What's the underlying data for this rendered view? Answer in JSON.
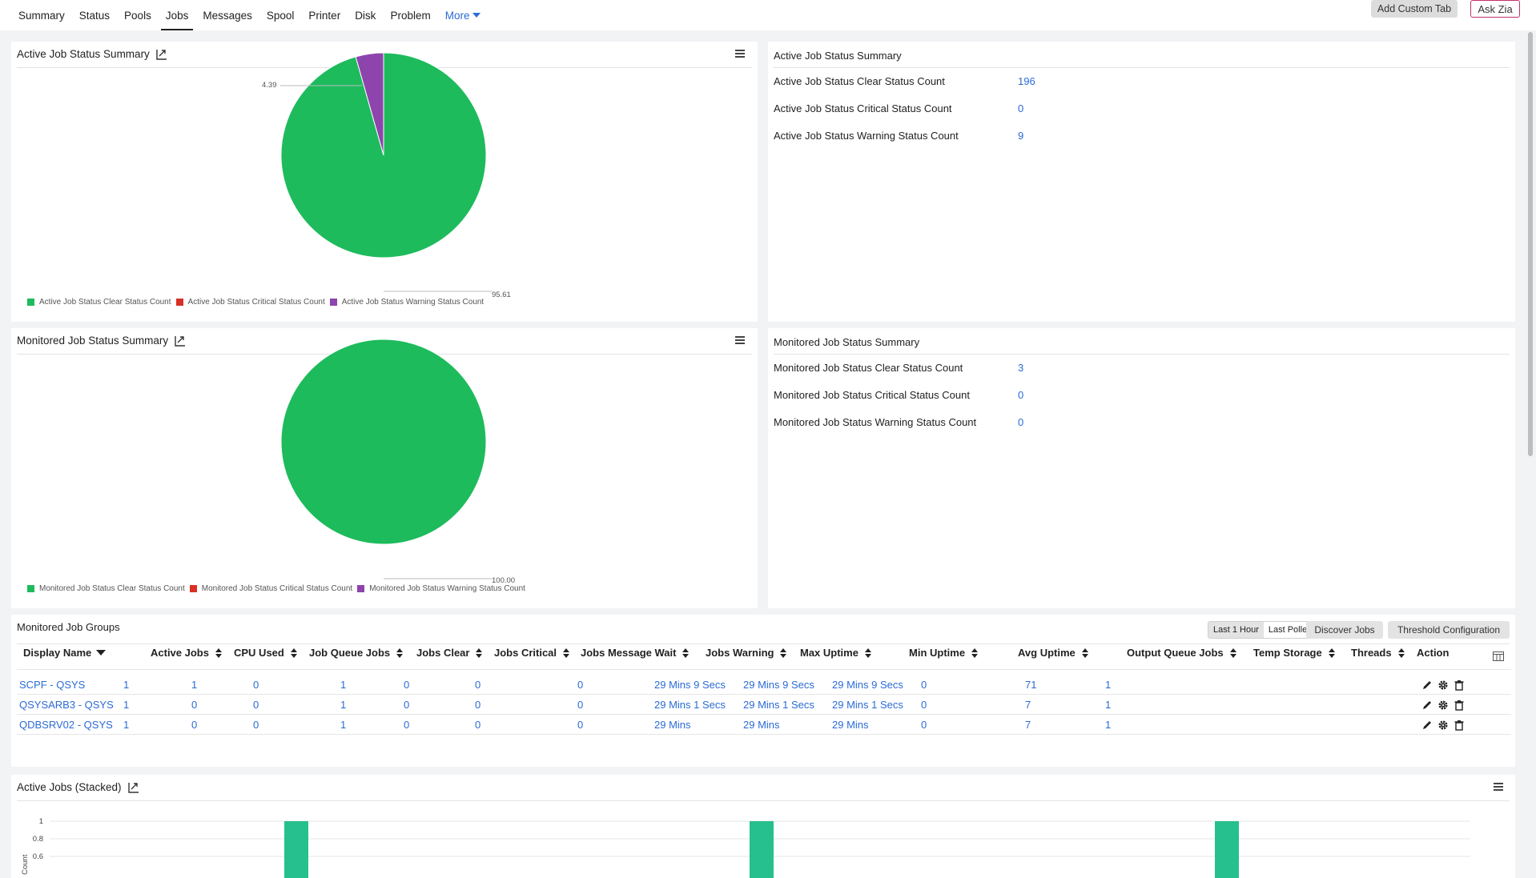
{
  "nav": {
    "tabs": [
      "Summary",
      "Status",
      "Pools",
      "Jobs",
      "Messages",
      "Spool",
      "Printer",
      "Disk",
      "Problem"
    ],
    "active_tab": "Jobs",
    "more_label": "More",
    "add_custom_tab": "Add Custom Tab",
    "ask_zia": "Ask Zia"
  },
  "active_summary": {
    "title": "Active Job Status Summary",
    "chart_data": {
      "type": "pie",
      "slices": [
        {
          "name": "Active Job Status Clear Status Count",
          "value": 95.61,
          "color": "#1dbb5c"
        },
        {
          "name": "Active Job Status Critical Status Count",
          "value": 0,
          "color": "#d93025"
        },
        {
          "name": "Active Job Status Warning Status Count",
          "value": 4.39,
          "color": "#8e44ad"
        }
      ],
      "labels": [
        "4.39",
        "95.61"
      ]
    },
    "kv_title": "Active Job Status Summary",
    "rows": [
      {
        "label": "Active Job Status Clear Status Count",
        "value": "196"
      },
      {
        "label": "Active Job Status Critical Status Count",
        "value": "0"
      },
      {
        "label": "Active Job Status Warning Status Count",
        "value": "9"
      }
    ]
  },
  "monitored_summary": {
    "title": "Monitored Job Status Summary",
    "chart_data": {
      "type": "pie",
      "slices": [
        {
          "name": "Monitored Job Status Clear Status Count",
          "value": 100.0,
          "color": "#1dbb5c"
        },
        {
          "name": "Monitored Job Status Critical Status Count",
          "value": 0,
          "color": "#d93025"
        },
        {
          "name": "Monitored Job Status Warning Status Count",
          "value": 0,
          "color": "#8e44ad"
        }
      ],
      "labels": [
        "100.00"
      ]
    },
    "kv_title": "Monitored Job Status Summary",
    "rows": [
      {
        "label": "Monitored Job Status Clear Status Count",
        "value": "3"
      },
      {
        "label": "Monitored Job Status Critical Status Count",
        "value": "0"
      },
      {
        "label": "Monitored Job Status Warning Status Count",
        "value": "0"
      }
    ]
  },
  "job_groups": {
    "title": "Monitored Job Groups",
    "range_options": [
      "Last 1 Hour",
      "Last Polled"
    ],
    "range_selected": "Last 1 Hour",
    "discover_label": "Discover Jobs",
    "threshold_label": "Threshold Configuration",
    "columns": [
      "Display Name",
      "Active Jobs",
      "CPU Used",
      "Job Queue Jobs",
      "Jobs Clear",
      "Jobs Critical",
      "Jobs Message Wait",
      "Jobs Warning",
      "Max Uptime",
      "Min Uptime",
      "Avg Uptime",
      "Output Queue Jobs",
      "Temp Storage",
      "Threads",
      "Action"
    ],
    "rows": [
      [
        "SCPF - QSYS",
        "1",
        "1",
        "0",
        "1",
        "0",
        "0",
        "0",
        "29 Mins 9 Secs",
        "29 Mins 9 Secs",
        "29 Mins 9 Secs",
        "0",
        "71",
        "1"
      ],
      [
        "QSYSARB3 - QSYS",
        "1",
        "0",
        "0",
        "1",
        "0",
        "0",
        "0",
        "29 Mins 1 Secs",
        "29 Mins 1 Secs",
        "29 Mins 1 Secs",
        "0",
        "7",
        "1"
      ],
      [
        "QDBSRV02 - QSYS",
        "1",
        "0",
        "0",
        "1",
        "0",
        "0",
        "0",
        "29 Mins",
        "29 Mins",
        "29 Mins",
        "0",
        "7",
        "1"
      ]
    ]
  },
  "stacked": {
    "title": "Active Jobs (Stacked)",
    "chart_data": {
      "type": "bar",
      "yticks": [
        "1",
        "0.8",
        "0.6"
      ],
      "ylabel": "Count",
      "bars": [
        1,
        1,
        1
      ],
      "color": "#26c08e"
    }
  }
}
